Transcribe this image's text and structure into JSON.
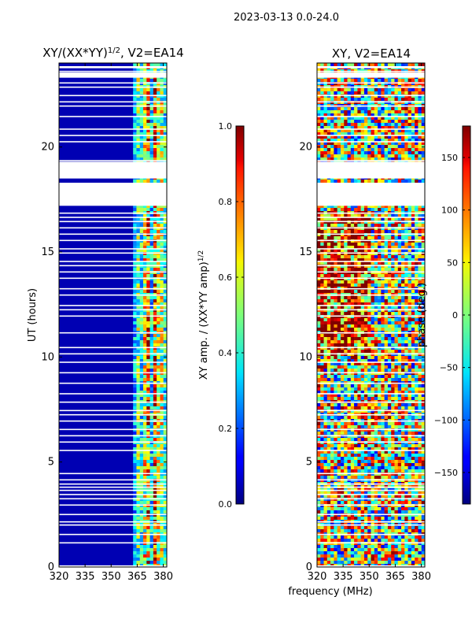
{
  "suptitle": "2023-03-13 0.0-24.0",
  "xlabel_shared": "frequency (MHz)",
  "chart_data": [
    {
      "type": "heatmap",
      "title": "XY/(XX*YY)^{1/2}, V2=EA14",
      "title_main": "XY/(XX*YY)",
      "title_exp": "1/2",
      "title_suffix": ", V2=EA14",
      "xlabel": "",
      "ylabel": "UT (hours)",
      "xlim": [
        320,
        382
      ],
      "ylim": [
        0,
        24
      ],
      "xticks": [
        320,
        335,
        350,
        365,
        380
      ],
      "yticks": [
        0,
        5,
        10,
        15,
        20
      ],
      "colorbar": {
        "label": "XY amp. / (XX*YY amp)^{1/2}",
        "label_main": "XY amp. / (XX*YY amp)",
        "label_exp": "1/2",
        "range": [
          0.0,
          1.0
        ],
        "ticks": [
          "0.0",
          "0.2",
          "0.4",
          "0.6",
          "0.8",
          "1.0"
        ],
        "colormap": "jet"
      },
      "noise_band_mhz": [
        362,
        382
      ],
      "background_level": 0.05
    },
    {
      "type": "heatmap",
      "title": "XY, V2=EA14",
      "xlabel": "frequency (MHz)",
      "ylabel": "",
      "xlim": [
        320,
        382
      ],
      "ylim": [
        0,
        24
      ],
      "xticks": [
        320,
        335,
        350,
        365,
        380
      ],
      "yticks": [
        0,
        5,
        10,
        15,
        20
      ],
      "colorbar": {
        "label": "phase (deg.)",
        "range": [
          -180,
          180
        ],
        "ticks": [
          "150",
          "100",
          "50",
          "0",
          "−50",
          "−100",
          "−150"
        ],
        "colormap": "jet"
      }
    }
  ],
  "gaps_hours": [
    [
      17.2,
      18.3
    ],
    [
      18.5,
      19.3
    ],
    [
      23.3,
      23.55
    ],
    [
      23.75,
      23.85
    ]
  ],
  "flag_lines_hours": [
    0.05,
    1.15,
    1.55,
    2.0,
    2.15,
    2.5,
    2.95,
    3.25,
    3.45,
    3.65,
    3.8,
    3.95,
    4.15,
    4.45,
    5.55,
    5.95,
    6.25,
    6.55,
    6.95,
    7.25,
    7.45,
    7.85,
    8.25,
    8.75,
    9.25,
    9.75,
    10.15,
    10.45,
    11.15,
    11.95,
    12.25,
    12.45,
    12.95,
    13.25,
    13.75,
    14.05,
    14.35,
    14.55,
    14.95,
    15.15,
    15.55,
    15.85,
    16.15,
    16.45,
    16.65,
    16.85,
    19.35,
    20.25,
    20.55,
    20.85,
    21.45,
    21.95,
    22.15,
    22.45,
    22.85,
    23.05,
    23.6
  ]
}
